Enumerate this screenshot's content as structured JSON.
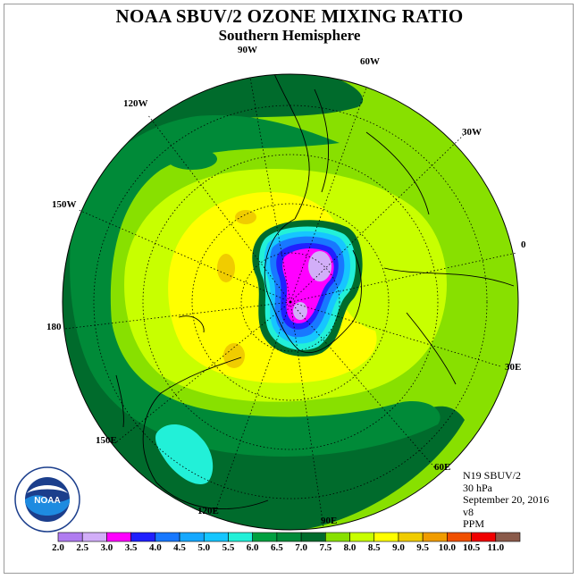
{
  "title": "NOAA SBUV/2 OZONE MIXING RATIO",
  "subtitle": "Southern Hemisphere",
  "longitude_labels": [
    "90W",
    "60W",
    "30W",
    "0",
    "30E",
    "60E",
    "90E",
    "120E",
    "150E",
    "180",
    "150W",
    "120W"
  ],
  "info": {
    "instrument": "N19 SBUV/2",
    "pressure_level": "30 hPa",
    "date": "September 20, 2016",
    "version": "v8",
    "units": "PPM"
  },
  "logo_text": "NOAA",
  "colorbar": {
    "ticks": [
      "2.0",
      "2.5",
      "3.0",
      "3.5",
      "4.0",
      "4.5",
      "5.0",
      "5.5",
      "6.0",
      "6.5",
      "7.0",
      "7.5",
      "8.0",
      "8.5",
      "9.0",
      "9.5",
      "10.0",
      "10.5",
      "11.0"
    ],
    "colors": [
      "#b07cf0",
      "#d2aef8",
      "#ff00ff",
      "#2020ff",
      "#1878ff",
      "#16a8ff",
      "#16c6ff",
      "#22f0d8",
      "#00a040",
      "#008a38",
      "#006b2c",
      "#88e000",
      "#c8ff00",
      "#ffff00",
      "#f0cc00",
      "#f09c00",
      "#f05000",
      "#f00000",
      "#8a5a4a"
    ]
  }
}
